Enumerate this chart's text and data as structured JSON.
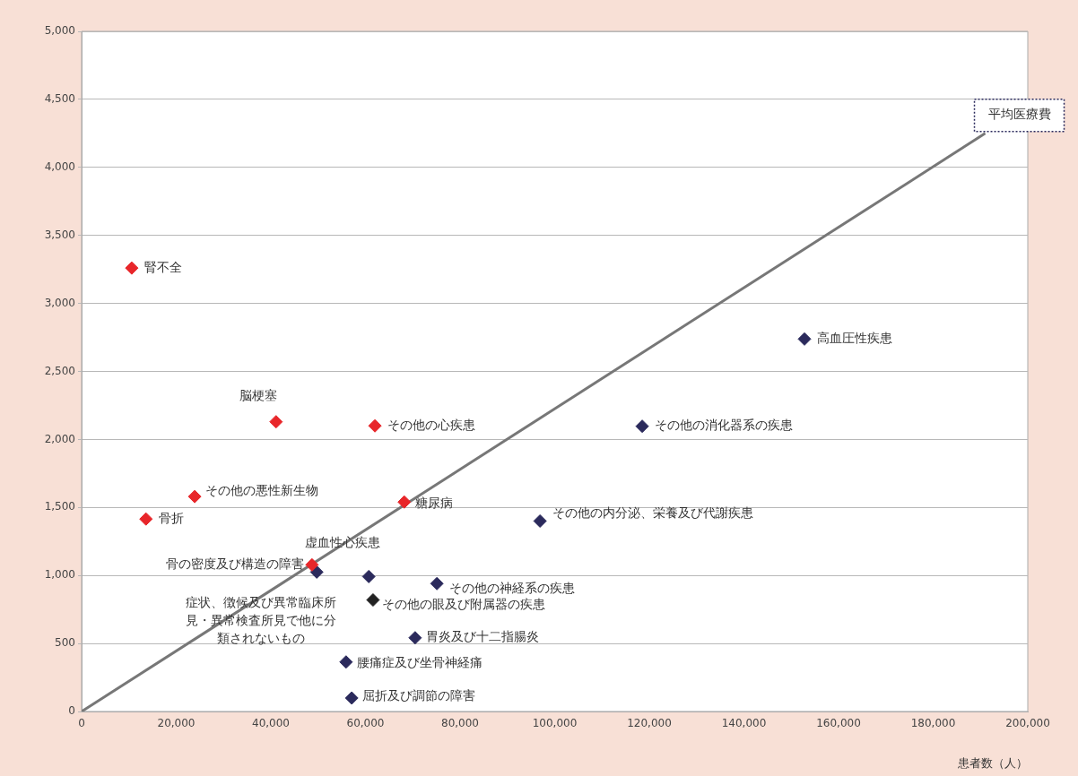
{
  "chart_data": {
    "type": "scatter",
    "xlabel": "患者数（人）",
    "xlim": [
      0,
      200000
    ],
    "xticks": [
      {
        "value": 0,
        "label": "0"
      },
      {
        "value": 20000,
        "label": "20,000"
      },
      {
        "value": 40000,
        "label": "40,000"
      },
      {
        "value": 60000,
        "label": "60,000"
      },
      {
        "value": 80000,
        "label": "80,000"
      },
      {
        "value": 100000,
        "label": "100,000"
      },
      {
        "value": 120000,
        "label": "120,000"
      },
      {
        "value": 140000,
        "label": "140,000"
      },
      {
        "value": 160000,
        "label": "160,000"
      },
      {
        "value": 180000,
        "label": "180,000"
      },
      {
        "value": 200000,
        "label": "200,000"
      }
    ],
    "ylim": [
      0,
      5000
    ],
    "yticks": [
      {
        "value": 0,
        "label": "0"
      },
      {
        "value": 500,
        "label": "500"
      },
      {
        "value": 1000,
        "label": "1,000"
      },
      {
        "value": 1500,
        "label": "1,500"
      },
      {
        "value": 2000,
        "label": "2,000"
      },
      {
        "value": 2500,
        "label": "2,500"
      },
      {
        "value": 3000,
        "label": "3,000"
      },
      {
        "value": 3500,
        "label": "3,500"
      },
      {
        "value": 4000,
        "label": "4,000"
      },
      {
        "value": 4500,
        "label": "4,500"
      },
      {
        "value": 5000,
        "label": "5,000"
      }
    ],
    "grid": "y",
    "legend": false,
    "marker": "diamond",
    "series": [
      {
        "type": "line",
        "color": "#777777",
        "x": [
          0,
          191000
        ],
        "values": [
          0,
          4250
        ],
        "marker": "none"
      },
      {
        "color": "#e8262a",
        "x": [
          10600,
          41100,
          62000,
          23900,
          13600,
          68200,
          48700
        ],
        "values": [
          3260,
          2130,
          2100,
          1580,
          1415,
          1540,
          1078
        ]
      },
      {
        "color": "#2b2a5c",
        "x": [
          152800,
          118500,
          96900,
          49700,
          60700,
          75100,
          70500,
          55900,
          57100
        ],
        "values": [
          2738,
          2097,
          1400,
          1025,
          992,
          940,
          542,
          364,
          99
        ]
      },
      {
        "color": "#222222",
        "x": [
          61600
        ],
        "values": [
          820
        ]
      }
    ],
    "annotations": [
      {
        "text": "腎不全",
        "x": 10600,
        "y": 3260
      },
      {
        "text": "脳梗塞",
        "x": 41100,
        "y": 2130
      },
      {
        "text": "その他の心疾患",
        "x": 62000,
        "y": 2100
      },
      {
        "text": "その他の悪性新生物",
        "x": 23900,
        "y": 1580
      },
      {
        "text": "骨折",
        "x": 13600,
        "y": 1415
      },
      {
        "text": "糖尿病",
        "x": 68200,
        "y": 1540
      },
      {
        "text": "虚血性心疾患",
        "x": 48700,
        "y": 1078
      },
      {
        "text": "高血圧性疾患",
        "x": 152800,
        "y": 2738
      },
      {
        "text": "その他の消化器系の疾患",
        "x": 118500,
        "y": 2097
      },
      {
        "text": "その他の内分泌、栄養及び代謝疾患",
        "x": 96900,
        "y": 1400
      },
      {
        "text": "骨の密度及び構造の障害",
        "x": 49700,
        "y": 1025
      },
      {
        "text": "症状、徴候及び異常臨床所見・異常検査所見で他に分類されないもの",
        "x": 60700,
        "y": 992
      },
      {
        "text": "その他の眼及び附属器の疾患",
        "x": 61600,
        "y": 820
      },
      {
        "text": "その他の神経系の疾患",
        "x": 75100,
        "y": 940
      },
      {
        "text": "胃炎及び十二指腸炎",
        "x": 70500,
        "y": 542
      },
      {
        "text": "腰痛症及び坐骨神経痛",
        "x": 55900,
        "y": 364
      },
      {
        "text": "屈折及び調節の障害",
        "x": 57100,
        "y": 99
      },
      {
        "text": "平均医療費",
        "x": 191000,
        "y": 4250
      }
    ]
  }
}
